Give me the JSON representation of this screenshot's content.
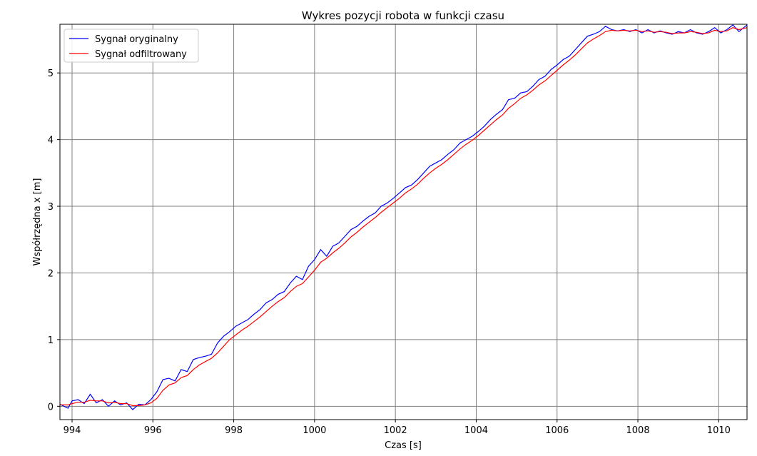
{
  "chart_data": {
    "type": "line",
    "title": "Wykres pozycji robota w funkcji czasu",
    "xlabel": "Czas [s]",
    "ylabel": "Współrzędna x [m]",
    "xlim": [
      993.7,
      1010.7
    ],
    "ylim": [
      -0.2,
      5.73
    ],
    "xticks": [
      994,
      996,
      998,
      1000,
      1002,
      1004,
      1006,
      1008,
      1010
    ],
    "yticks": [
      0,
      1,
      2,
      3,
      4,
      5
    ],
    "grid": true,
    "legend": "top-left",
    "series": [
      {
        "name": "Sygnał oryginalny",
        "color": "#0000ff",
        "x": [
          993.7,
          993.9,
          994.0,
          994.15,
          994.3,
          994.45,
          994.6,
          994.75,
          994.9,
          995.05,
          995.2,
          995.35,
          995.5,
          995.65,
          995.8,
          995.95,
          996.1,
          996.25,
          996.4,
          996.55,
          996.7,
          996.85,
          997.0,
          997.15,
          997.3,
          997.45,
          997.6,
          997.75,
          997.9,
          998.05,
          998.2,
          998.35,
          998.5,
          998.65,
          998.8,
          998.95,
          999.1,
          999.25,
          999.4,
          999.55,
          999.7,
          999.85,
          1000.0,
          1000.15,
          1000.3,
          1000.45,
          1000.6,
          1000.75,
          1000.9,
          1001.05,
          1001.2,
          1001.35,
          1001.5,
          1001.65,
          1001.8,
          1001.95,
          1002.1,
          1002.25,
          1002.4,
          1002.55,
          1002.7,
          1002.85,
          1003.0,
          1003.15,
          1003.3,
          1003.45,
          1003.6,
          1003.75,
          1003.9,
          1004.05,
          1004.2,
          1004.35,
          1004.5,
          1004.65,
          1004.8,
          1004.95,
          1005.1,
          1005.25,
          1005.4,
          1005.55,
          1005.7,
          1005.85,
          1006.0,
          1006.15,
          1006.3,
          1006.45,
          1006.6,
          1006.75,
          1006.9,
          1007.05,
          1007.2,
          1007.35,
          1007.5,
          1007.65,
          1007.8,
          1007.95,
          1008.1,
          1008.25,
          1008.4,
          1008.55,
          1008.7,
          1008.85,
          1009.0,
          1009.15,
          1009.3,
          1009.45,
          1009.6,
          1009.75,
          1009.9,
          1010.05,
          1010.2,
          1010.35,
          1010.5,
          1010.7
        ],
        "y": [
          0.03,
          -0.03,
          0.08,
          0.1,
          0.04,
          0.18,
          0.05,
          0.1,
          0.0,
          0.08,
          0.02,
          0.05,
          -0.05,
          0.03,
          0.02,
          0.1,
          0.22,
          0.4,
          0.42,
          0.38,
          0.55,
          0.52,
          0.7,
          0.73,
          0.75,
          0.78,
          0.95,
          1.05,
          1.12,
          1.2,
          1.25,
          1.3,
          1.38,
          1.45,
          1.55,
          1.6,
          1.68,
          1.72,
          1.85,
          1.95,
          1.9,
          2.1,
          2.2,
          2.35,
          2.25,
          2.4,
          2.45,
          2.55,
          2.65,
          2.7,
          2.78,
          2.85,
          2.9,
          3.0,
          3.05,
          3.12,
          3.2,
          3.28,
          3.32,
          3.4,
          3.5,
          3.6,
          3.65,
          3.7,
          3.78,
          3.85,
          3.95,
          4.0,
          4.05,
          4.12,
          4.2,
          4.3,
          4.38,
          4.45,
          4.6,
          4.62,
          4.7,
          4.72,
          4.8,
          4.9,
          4.95,
          5.05,
          5.12,
          5.2,
          5.25,
          5.35,
          5.45,
          5.55,
          5.58,
          5.62,
          5.7,
          5.65,
          5.63,
          5.65,
          5.62,
          5.65,
          5.6,
          5.65,
          5.6,
          5.63,
          5.6,
          5.58,
          5.62,
          5.6,
          5.65,
          5.6,
          5.58,
          5.62,
          5.68,
          5.6,
          5.65,
          5.72,
          5.62,
          5.72
        ]
      },
      {
        "name": "Sygnał odfiltrowany",
        "color": "#ff0000",
        "x": [
          993.7,
          993.9,
          994.0,
          994.15,
          994.3,
          994.45,
          994.6,
          994.75,
          994.9,
          995.05,
          995.2,
          995.35,
          995.5,
          995.65,
          995.8,
          995.95,
          996.1,
          996.25,
          996.4,
          996.55,
          996.7,
          996.85,
          997.0,
          997.15,
          997.3,
          997.45,
          997.6,
          997.75,
          997.9,
          998.05,
          998.2,
          998.35,
          998.5,
          998.65,
          998.8,
          998.95,
          999.1,
          999.25,
          999.4,
          999.55,
          999.7,
          999.85,
          1000.0,
          1000.15,
          1000.3,
          1000.45,
          1000.6,
          1000.75,
          1000.9,
          1001.05,
          1001.2,
          1001.35,
          1001.5,
          1001.65,
          1001.8,
          1001.95,
          1002.1,
          1002.25,
          1002.4,
          1002.55,
          1002.7,
          1002.85,
          1003.0,
          1003.15,
          1003.3,
          1003.45,
          1003.6,
          1003.75,
          1003.9,
          1004.05,
          1004.2,
          1004.35,
          1004.5,
          1004.65,
          1004.8,
          1004.95,
          1005.1,
          1005.25,
          1005.4,
          1005.55,
          1005.7,
          1005.85,
          1006.0,
          1006.15,
          1006.3,
          1006.45,
          1006.6,
          1006.75,
          1006.9,
          1007.05,
          1007.2,
          1007.35,
          1007.5,
          1007.65,
          1007.8,
          1007.95,
          1008.1,
          1008.25,
          1008.4,
          1008.55,
          1008.7,
          1008.85,
          1009.0,
          1009.15,
          1009.3,
          1009.45,
          1009.6,
          1009.75,
          1009.9,
          1010.05,
          1010.2,
          1010.35,
          1010.5,
          1010.7
        ],
        "y": [
          0.02,
          0.02,
          0.04,
          0.06,
          0.06,
          0.09,
          0.08,
          0.08,
          0.05,
          0.06,
          0.04,
          0.04,
          0.01,
          0.01,
          0.02,
          0.05,
          0.12,
          0.24,
          0.32,
          0.35,
          0.43,
          0.46,
          0.55,
          0.62,
          0.67,
          0.72,
          0.8,
          0.9,
          1.0,
          1.07,
          1.14,
          1.2,
          1.27,
          1.34,
          1.42,
          1.5,
          1.57,
          1.63,
          1.72,
          1.8,
          1.84,
          1.94,
          2.04,
          2.16,
          2.22,
          2.3,
          2.37,
          2.45,
          2.54,
          2.61,
          2.69,
          2.76,
          2.83,
          2.91,
          2.98,
          3.05,
          3.12,
          3.2,
          3.26,
          3.33,
          3.42,
          3.5,
          3.57,
          3.63,
          3.7,
          3.78,
          3.86,
          3.93,
          3.99,
          4.06,
          4.14,
          4.22,
          4.3,
          4.37,
          4.47,
          4.54,
          4.62,
          4.67,
          4.74,
          4.82,
          4.88,
          4.96,
          5.04,
          5.12,
          5.19,
          5.27,
          5.36,
          5.45,
          5.51,
          5.56,
          5.62,
          5.64,
          5.63,
          5.64,
          5.63,
          5.64,
          5.62,
          5.63,
          5.61,
          5.62,
          5.61,
          5.59,
          5.6,
          5.6,
          5.62,
          5.61,
          5.59,
          5.6,
          5.64,
          5.62,
          5.63,
          5.68,
          5.65,
          5.68
        ]
      }
    ]
  }
}
